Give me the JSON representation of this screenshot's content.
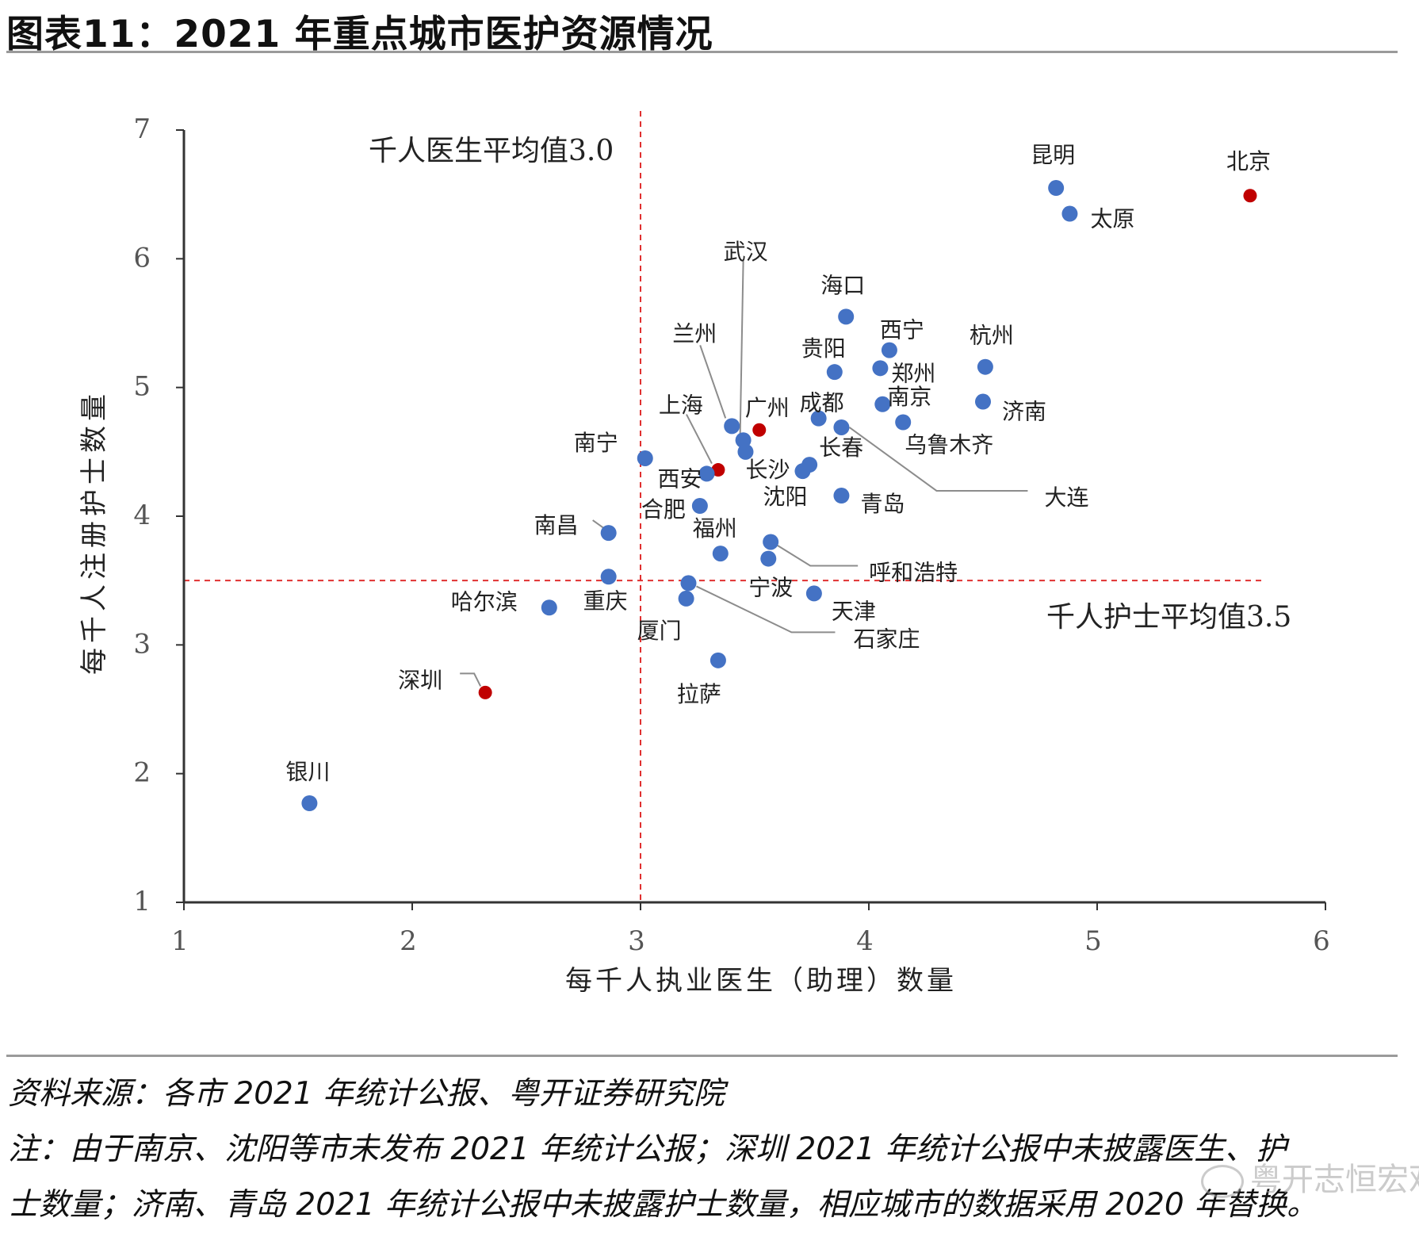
{
  "title": "图表11：2021 年重点城市医护资源情况",
  "footer": {
    "source": "资料来源：各市 2021 年统计公报、粤开证券研究院",
    "note_line1": "注：由于南京、沈阳等市未发布 2021 年统计公报；深圳 2021 年统计公报中未披露医生、护",
    "note_line2": "士数量；济南、青岛 2021 年统计公报中未披露护士数量，相应城市的数据采用 2020 年替换。"
  },
  "watermark": "粤开志恒宏观",
  "colors": {
    "blue": "#4472C4",
    "red": "#C00000",
    "refline": "#E03030",
    "axis": "#333333",
    "leader": "#8c8c8c"
  },
  "chart_data": {
    "type": "scatter",
    "title": "2021 年重点城市医护资源情况",
    "xlabel": "每千人执业医生（助理）数量",
    "ylabel": "每千人注册护士数量",
    "xlim": [
      1,
      6
    ],
    "ylim": [
      1,
      7
    ],
    "xticks": [
      "1",
      "2",
      "3",
      "4",
      "5",
      "6"
    ],
    "yticks": [
      "1",
      "2",
      "3",
      "4",
      "5",
      "6",
      "7"
    ],
    "reference_lines": [
      {
        "axis": "x",
        "value": 3.0,
        "label": "千人医生平均值3.0"
      },
      {
        "axis": "y",
        "value": 3.5,
        "label": "千人护士平均值3.5"
      }
    ],
    "points": [
      {
        "city": "北京",
        "x": 5.67,
        "y": 6.49,
        "highlight": true
      },
      {
        "city": "昆明",
        "x": 4.82,
        "y": 6.55,
        "highlight": false
      },
      {
        "city": "太原",
        "x": 4.88,
        "y": 6.35,
        "highlight": false
      },
      {
        "city": "武汉",
        "x": 3.45,
        "y": 4.59,
        "highlight": false
      },
      {
        "city": "海口",
        "x": 3.9,
        "y": 5.55,
        "highlight": false
      },
      {
        "city": "西宁",
        "x": 4.09,
        "y": 5.29,
        "highlight": false
      },
      {
        "city": "杭州",
        "x": 4.51,
        "y": 5.16,
        "highlight": false
      },
      {
        "city": "贵阳",
        "x": 3.85,
        "y": 5.12,
        "highlight": false
      },
      {
        "city": "郑州",
        "x": 4.05,
        "y": 5.15,
        "highlight": false
      },
      {
        "city": "南京",
        "x": 4.06,
        "y": 4.87,
        "highlight": false
      },
      {
        "city": "济南",
        "x": 4.5,
        "y": 4.89,
        "highlight": false
      },
      {
        "city": "兰州",
        "x": 3.4,
        "y": 4.7,
        "highlight": false
      },
      {
        "city": "广州",
        "x": 3.52,
        "y": 4.67,
        "highlight": true
      },
      {
        "city": "成都",
        "x": 3.78,
        "y": 4.76,
        "highlight": false
      },
      {
        "city": "乌鲁木齐",
        "x": 4.15,
        "y": 4.73,
        "highlight": false
      },
      {
        "city": "大连",
        "x": 3.88,
        "y": 4.69,
        "highlight": false
      },
      {
        "city": "上海",
        "x": 3.34,
        "y": 4.36,
        "highlight": true
      },
      {
        "city": "长沙",
        "x": 3.46,
        "y": 4.5,
        "highlight": false
      },
      {
        "city": "长春",
        "x": 3.74,
        "y": 4.4,
        "highlight": false
      },
      {
        "city": "沈阳",
        "x": 3.71,
        "y": 4.35,
        "highlight": false
      },
      {
        "city": "南宁",
        "x": 3.02,
        "y": 4.45,
        "highlight": false
      },
      {
        "city": "西安",
        "x": 3.29,
        "y": 4.33,
        "highlight": false
      },
      {
        "city": "合肥",
        "x": 3.26,
        "y": 4.08,
        "highlight": false
      },
      {
        "city": "青岛",
        "x": 3.88,
        "y": 4.16,
        "highlight": false
      },
      {
        "city": "南昌",
        "x": 2.86,
        "y": 3.87,
        "highlight": false
      },
      {
        "city": "福州",
        "x": 3.35,
        "y": 3.71,
        "highlight": false
      },
      {
        "city": "呼和浩特",
        "x": 3.57,
        "y": 3.8,
        "highlight": false
      },
      {
        "city": "宁波",
        "x": 3.56,
        "y": 3.67,
        "highlight": false
      },
      {
        "city": "重庆",
        "x": 2.86,
        "y": 3.53,
        "highlight": false
      },
      {
        "city": "石家庄",
        "x": 3.21,
        "y": 3.48,
        "highlight": false
      },
      {
        "city": "厦门",
        "x": 3.2,
        "y": 3.36,
        "highlight": false
      },
      {
        "city": "天津",
        "x": 3.76,
        "y": 3.4,
        "highlight": false
      },
      {
        "city": "哈尔滨",
        "x": 2.6,
        "y": 3.29,
        "highlight": false
      },
      {
        "city": "拉萨",
        "x": 3.34,
        "y": 2.88,
        "highlight": false
      },
      {
        "city": "深圳",
        "x": 2.32,
        "y": 2.63,
        "highlight": true
      },
      {
        "city": "银川",
        "x": 1.55,
        "y": 1.77,
        "highlight": false
      }
    ]
  }
}
